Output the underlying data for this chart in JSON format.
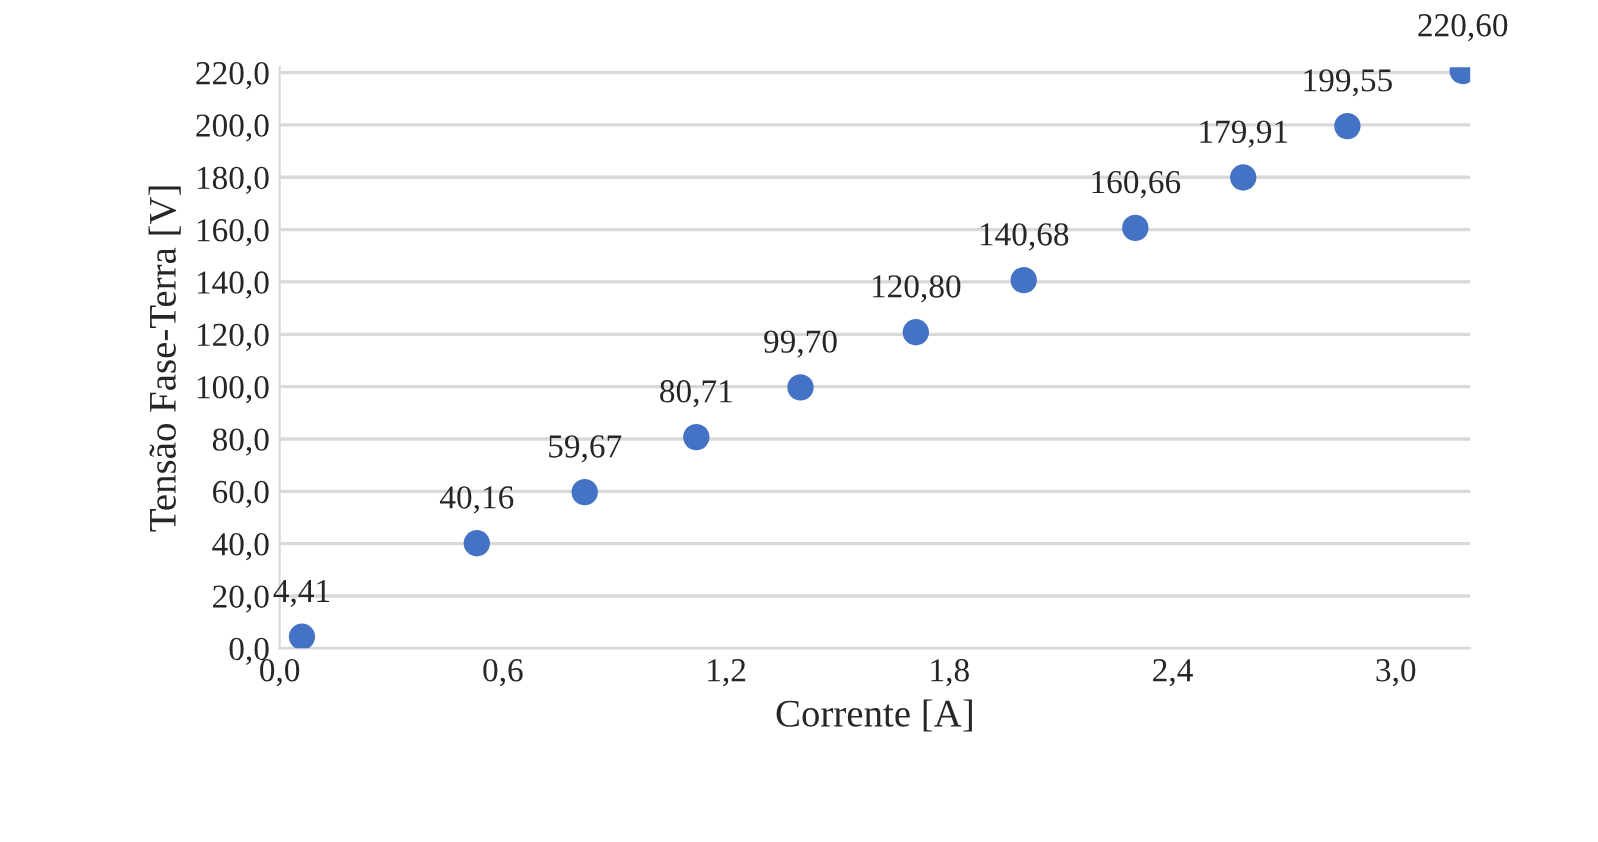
{
  "chart_data": {
    "type": "scatter",
    "xlabel": "Corrente [A]",
    "ylabel": "Tensão Fase-Terra [V]",
    "x": [
      0.06,
      0.53,
      0.82,
      1.12,
      1.4,
      1.71,
      2.0,
      2.3,
      2.59,
      2.87,
      3.18
    ],
    "series": [
      {
        "color": "#4472c4",
        "values": [
          4.41,
          40.16,
          59.67,
          80.71,
          99.7,
          120.8,
          140.68,
          160.66,
          179.91,
          199.55,
          220.6
        ],
        "value_labels": [
          "4,41",
          "40,16",
          "59,67",
          "80,71",
          "99,70",
          "120,80",
          "140,68",
          "160,66",
          "179,91",
          "199,55",
          "220,60"
        ]
      }
    ],
    "xlim": [
      0,
      3.2
    ],
    "xticks": [
      {
        "value": 0,
        "label": "0,0"
      },
      {
        "value": 0.6,
        "label": "0,6"
      },
      {
        "value": 1.2,
        "label": "1,2"
      },
      {
        "value": 1.8,
        "label": "1,8"
      },
      {
        "value": 2.4,
        "label": "2,4"
      },
      {
        "value": 3.0,
        "label": "3,0"
      }
    ],
    "ylim": [
      0,
      222
    ],
    "yticks": [
      {
        "value": 0,
        "label": "0,0"
      },
      {
        "value": 20,
        "label": "20,0"
      },
      {
        "value": 40,
        "label": "40,0"
      },
      {
        "value": 60,
        "label": "60,0"
      },
      {
        "value": 80,
        "label": "80,0"
      },
      {
        "value": 100,
        "label": "100,0"
      },
      {
        "value": 120,
        "label": "120,0"
      },
      {
        "value": 140,
        "label": "140,0"
      },
      {
        "value": 160,
        "label": "160,0"
      },
      {
        "value": 180,
        "label": "180,0"
      },
      {
        "value": 200,
        "label": "200,0"
      },
      {
        "value": 220,
        "label": "220,0"
      }
    ],
    "grid": "y",
    "marker": "circle",
    "legend": false
  }
}
